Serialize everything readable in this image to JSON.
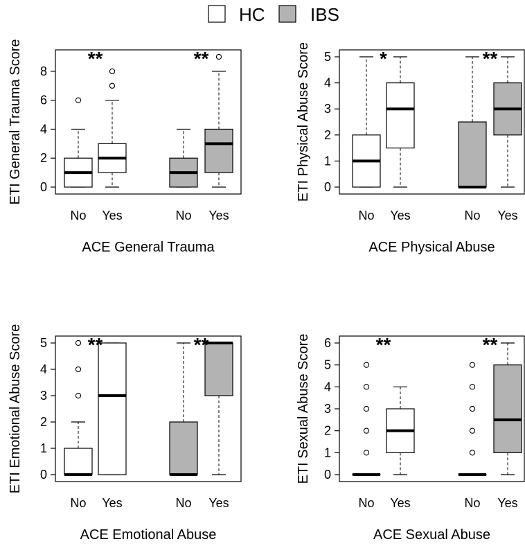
{
  "legend": {
    "items": [
      {
        "label": "HC",
        "fill": "#ffffff"
      },
      {
        "label": "IBS",
        "fill": "#b3b3b3"
      }
    ]
  },
  "colors": {
    "hc": "#ffffff",
    "ibs": "#b3b3b3",
    "stroke": "#000000"
  },
  "chart_data": [
    {
      "type": "boxplot",
      "ylabel": "ETI General Trauma Score",
      "xlabel": "ACE General Trauma",
      "ylim": [
        0,
        9
      ],
      "yticks": [
        0,
        2,
        4,
        6,
        8
      ],
      "significance": [
        "**",
        "**"
      ],
      "boxes": [
        {
          "group": "HC",
          "category": "No",
          "whisker_low": 0,
          "q1": 0,
          "median": 1,
          "q3": 2,
          "whisker_high": 4,
          "outliers": [
            6
          ]
        },
        {
          "group": "HC",
          "category": "Yes",
          "whisker_low": 0,
          "q1": 1,
          "median": 2,
          "q3": 3,
          "whisker_high": 6,
          "outliers": [
            7,
            8
          ]
        },
        {
          "group": "IBS",
          "category": "No",
          "whisker_low": 0,
          "q1": 0,
          "median": 1,
          "q3": 2,
          "whisker_high": 4,
          "outliers": []
        },
        {
          "group": "IBS",
          "category": "Yes",
          "whisker_low": 0,
          "q1": 1,
          "median": 3,
          "q3": 4,
          "whisker_high": 8,
          "outliers": [
            9
          ]
        }
      ]
    },
    {
      "type": "boxplot",
      "ylabel": "ETI Physical Abuse Score",
      "xlabel": "ACE Physical Abuse",
      "ylim": [
        0,
        5
      ],
      "yticks": [
        0,
        1,
        2,
        3,
        4,
        5
      ],
      "significance": [
        "*",
        "**"
      ],
      "boxes": [
        {
          "group": "HC",
          "category": "No",
          "whisker_low": 0,
          "q1": 0,
          "median": 1,
          "q3": 2,
          "whisker_high": 5,
          "outliers": []
        },
        {
          "group": "HC",
          "category": "Yes",
          "whisker_low": 0,
          "q1": 1.5,
          "median": 3,
          "q3": 4,
          "whisker_high": 5,
          "outliers": []
        },
        {
          "group": "IBS",
          "category": "No",
          "whisker_low": 0,
          "q1": 0,
          "median": 0,
          "q3": 2.5,
          "whisker_high": 5,
          "outliers": []
        },
        {
          "group": "IBS",
          "category": "Yes",
          "whisker_low": 0,
          "q1": 2,
          "median": 3,
          "q3": 4,
          "whisker_high": 5,
          "outliers": []
        }
      ]
    },
    {
      "type": "boxplot",
      "ylabel": "ETI Emotional Abuse Score",
      "xlabel": "ACE Emotional Abuse",
      "ylim": [
        0,
        5
      ],
      "yticks": [
        0,
        1,
        2,
        3,
        4,
        5
      ],
      "significance": [
        "**",
        "**"
      ],
      "boxes": [
        {
          "group": "HC",
          "category": "No",
          "whisker_low": 0,
          "q1": 0,
          "median": 0,
          "q3": 1,
          "whisker_high": 2,
          "outliers": [
            3,
            4,
            5
          ]
        },
        {
          "group": "HC",
          "category": "Yes",
          "whisker_low": 0,
          "q1": 0,
          "median": 3,
          "q3": 5,
          "whisker_high": 5,
          "outliers": []
        },
        {
          "group": "IBS",
          "category": "No",
          "whisker_low": 0,
          "q1": 0,
          "median": 0,
          "q3": 2,
          "whisker_high": 5,
          "outliers": []
        },
        {
          "group": "IBS",
          "category": "Yes",
          "whisker_low": 0,
          "q1": 3,
          "median": 5,
          "q3": 5,
          "whisker_high": 5,
          "outliers": []
        }
      ]
    },
    {
      "type": "boxplot",
      "ylabel": "ETI Sexual Abuse Score",
      "xlabel": "ACE Sexual Abuse",
      "ylim": [
        0,
        6
      ],
      "yticks": [
        0,
        1,
        2,
        3,
        4,
        5,
        6
      ],
      "significance": [
        "**",
        "**"
      ],
      "boxes": [
        {
          "group": "HC",
          "category": "No",
          "whisker_low": 0,
          "q1": 0,
          "median": 0,
          "q3": 0,
          "whisker_high": 0,
          "outliers": [
            1,
            2,
            3,
            4,
            5
          ]
        },
        {
          "group": "HC",
          "category": "Yes",
          "whisker_low": 0,
          "q1": 1,
          "median": 2,
          "q3": 3,
          "whisker_high": 4,
          "outliers": []
        },
        {
          "group": "IBS",
          "category": "No",
          "whisker_low": 0,
          "q1": 0,
          "median": 0,
          "q3": 0,
          "whisker_high": 0,
          "outliers": [
            1,
            2,
            3,
            4,
            5
          ]
        },
        {
          "group": "IBS",
          "category": "Yes",
          "whisker_low": 0,
          "q1": 1,
          "median": 2.5,
          "q3": 5,
          "whisker_high": 6,
          "outliers": []
        }
      ]
    }
  ]
}
